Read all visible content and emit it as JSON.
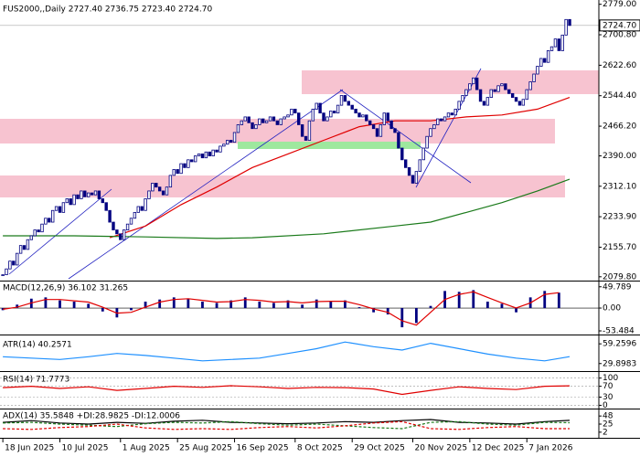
{
  "chart_data": [
    {
      "type": "candlestick",
      "title": "FUS2000,,Daily  2727.40 2736.75 2723.40 2724.70",
      "color": "#000080",
      "values": [
        2085,
        2100,
        2120,
        2110,
        2140,
        2160,
        2150,
        2175,
        2185,
        2200,
        2195,
        2215,
        2230,
        2220,
        2250,
        2260,
        2245,
        2270,
        2280,
        2265,
        2290,
        2280,
        2300,
        2285,
        2295,
        2290,
        2300,
        2280,
        2270,
        2250,
        2220,
        2200,
        2190,
        2175,
        2200,
        2215,
        2230,
        2245,
        2260,
        2250,
        2280,
        2300,
        2320,
        2310,
        2300,
        2290,
        2310,
        2340,
        2355,
        2345,
        2370,
        2360,
        2380,
        2375,
        2390,
        2395,
        2385,
        2400,
        2390,
        2405,
        2400,
        2415,
        2420,
        2430,
        2425,
        2450,
        2470,
        2480,
        2490,
        2475,
        2460,
        2470,
        2485,
        2475,
        2480,
        2490,
        2480,
        2470,
        2485,
        2490,
        2495,
        2510,
        2500,
        2470,
        2440,
        2430,
        2480,
        2510,
        2525,
        2500,
        2480,
        2490,
        2505,
        2500,
        2520,
        2545,
        2530,
        2520,
        2510,
        2500,
        2490,
        2495,
        2480,
        2470,
        2460,
        2440,
        2470,
        2500,
        2480,
        2460,
        2450,
        2410,
        2380,
        2360,
        2340,
        2320,
        2350,
        2380,
        2410,
        2440,
        2460,
        2470,
        2485,
        2480,
        2490,
        2500,
        2495,
        2510,
        2530,
        2545,
        2560,
        2575,
        2590,
        2560,
        2530,
        2520,
        2540,
        2560,
        2555,
        2570,
        2575,
        2560,
        2550,
        2540,
        2530,
        2520,
        2535,
        2560,
        2580,
        2600,
        2620,
        2640,
        2630,
        2660,
        2670,
        2690,
        2660,
        2700,
        2740,
        2724.7
      ],
      "overlays": [
        {
          "color": "#e00000",
          "x": [
            30,
            40,
            50,
            60,
            70,
            80,
            90,
            100,
            110,
            120,
            130,
            140,
            150,
            159
          ],
          "values": [
            2180,
            2210,
            2265,
            2310,
            2360,
            2395,
            2430,
            2465,
            2480,
            2480,
            2490,
            2495,
            2510,
            2540
          ]
        },
        {
          "color": "#1a7a1a",
          "x": [
            0,
            20,
            40,
            60,
            70,
            90,
            110,
            120,
            130,
            140,
            150,
            159
          ],
          "values": [
            2185,
            2185,
            2182,
            2178,
            2180,
            2190,
            2210,
            2220,
            2245,
            2270,
            2300,
            2330
          ]
        }
      ],
      "current": {
        "value": 2724.7,
        "label": "2724.70"
      },
      "xlim": [
        -0.8,
        167.2
      ],
      "xticks": [
        {
          "value": 0,
          "label": "18 Jun 2025"
        },
        {
          "value": 16,
          "label": "10 Jul 2025"
        },
        {
          "value": 33,
          "label": "1 Aug 2025"
        },
        {
          "value": 49,
          "label": "25 Aug 2025"
        },
        {
          "value": 65,
          "label": "16 Sep 2025"
        },
        {
          "value": 82,
          "label": "8 Oct 2025"
        },
        {
          "value": 98,
          "label": "29 Oct 2025"
        },
        {
          "value": 115,
          "label": "20 Nov 2025"
        },
        {
          "value": 131,
          "label": "12 Dec 2025"
        },
        {
          "value": 147,
          "label": "7 Jan 2026"
        }
      ],
      "ylim": [
        2070,
        2790
      ],
      "yticks": [
        {
          "value": 2779,
          "label": "2779.00"
        },
        {
          "value": 2700.8,
          "label": "2700.80"
        },
        {
          "value": 2622.6,
          "label": "2622.60"
        },
        {
          "value": 2544.4,
          "label": "2544.40"
        },
        {
          "value": 2466.2,
          "label": "2466.20"
        },
        {
          "value": 2390,
          "label": "2390.00"
        },
        {
          "value": 2312.1,
          "label": "2312.10"
        },
        {
          "value": 2233.9,
          "label": "2233.90"
        },
        {
          "value": 2155.7,
          "label": "2155.70"
        },
        {
          "value": 2079.8,
          "label": "2079.80"
        }
      ]
    },
    {
      "type": "macd",
      "title": "MACD(12,26,9) 36.102 31.265",
      "color": "#000080",
      "signal_color": "#e00000",
      "x": [
        0,
        4,
        8,
        12,
        16,
        20,
        24,
        28,
        32,
        36,
        40,
        44,
        48,
        52,
        56,
        60,
        64,
        68,
        72,
        76,
        80,
        84,
        88,
        92,
        96,
        100,
        104,
        108,
        112,
        116,
        120,
        124,
        128,
        132,
        136,
        140,
        144,
        148,
        152,
        156
      ],
      "values": [
        -5,
        8,
        22,
        25,
        18,
        15,
        10,
        -8,
        -22,
        -5,
        15,
        20,
        25,
        22,
        15,
        12,
        18,
        25,
        15,
        12,
        18,
        8,
        20,
        15,
        18,
        2,
        -10,
        -15,
        -45,
        -35,
        5,
        40,
        38,
        42,
        15,
        10,
        -10,
        25,
        40,
        36
      ],
      "signal": [
        -3,
        2,
        12,
        20,
        20,
        17,
        14,
        2,
        -12,
        -10,
        2,
        14,
        20,
        22,
        18,
        14,
        15,
        20,
        18,
        14,
        15,
        12,
        15,
        16,
        16,
        8,
        -2,
        -10,
        -30,
        -40,
        -10,
        20,
        32,
        38,
        25,
        12,
        0,
        12,
        32,
        36
      ],
      "ylim": [
        -62,
        60
      ],
      "yticks": [
        49.789,
        {
          "value": 0,
          "label": "0.00"
        },
        -53.484
      ]
    },
    {
      "type": "line",
      "title": "ATR(14) 40.2571",
      "x": [
        0,
        8,
        16,
        24,
        32,
        40,
        48,
        56,
        64,
        72,
        80,
        88,
        96,
        104,
        112,
        120,
        128,
        136,
        144,
        152,
        159
      ],
      "series": [
        {
          "color": "#1e90ff",
          "values": [
            40,
            38,
            36,
            40,
            45,
            42,
            38,
            34,
            36,
            38,
            45,
            52,
            62,
            55,
            50,
            60,
            52,
            44,
            38,
            34,
            40.2571
          ]
        }
      ],
      "ylim": [
        18.7,
        70.4
      ],
      "yticks": [
        59.2596,
        29.8983
      ]
    },
    {
      "type": "line",
      "title": "RSI(14) 71.7773",
      "x": [
        0,
        8,
        16,
        24,
        32,
        40,
        48,
        56,
        64,
        72,
        80,
        88,
        96,
        104,
        112,
        120,
        128,
        136,
        144,
        152,
        159
      ],
      "series": [
        {
          "color": "#e00000",
          "values": [
            65,
            70,
            62,
            68,
            55,
            62,
            70,
            66,
            72,
            68,
            62,
            66,
            65,
            60,
            40,
            55,
            68,
            62,
            58,
            70,
            71.7773
          ]
        }
      ],
      "ylim": [
        -12,
        119
      ],
      "yticks": [
        100,
        70,
        30,
        0
      ]
    },
    {
      "type": "line",
      "title": "ADX(14) 35.5848 +DI:28.9825 -DI:12.0006",
      "x": [
        0,
        8,
        16,
        24,
        32,
        40,
        48,
        56,
        64,
        72,
        80,
        88,
        96,
        104,
        112,
        120,
        128,
        136,
        144,
        152,
        159
      ],
      "series": [
        {
          "color": "#000000",
          "values": [
            30,
            35,
            28,
            25,
            30,
            27,
            33,
            36,
            30,
            28,
            26,
            28,
            32,
            30,
            35,
            38,
            30,
            28,
            25,
            32,
            35.5848
          ]
        },
        {
          "color": "#1a7a1a",
          "dash": true,
          "values": [
            28,
            30,
            25,
            22,
            18,
            26,
            30,
            28,
            32,
            26,
            22,
            25,
            20,
            15,
            12,
            30,
            32,
            25,
            22,
            30,
            28.9825
          ]
        },
        {
          "color": "#e00000",
          "dash": true,
          "values": [
            12,
            10,
            15,
            18,
            25,
            14,
            10,
            12,
            10,
            15,
            18,
            14,
            20,
            28,
            32,
            12,
            10,
            15,
            18,
            12,
            12.0006
          ]
        }
      ],
      "ylim": [
        -14,
        64
      ],
      "yticks": [
        48,
        25,
        2
      ]
    }
  ]
}
